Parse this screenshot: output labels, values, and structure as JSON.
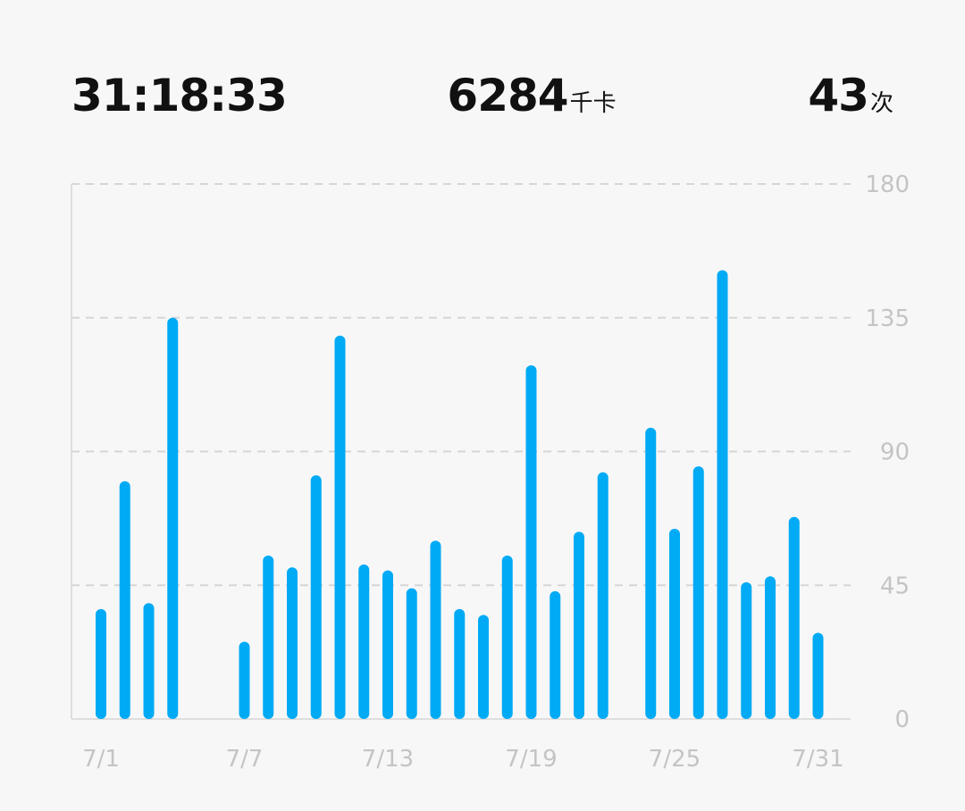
{
  "stats": {
    "duration": {
      "value": "31:18:33"
    },
    "calories": {
      "value": "6284",
      "unit": "千卡"
    },
    "count": {
      "value": "43",
      "unit": "次"
    }
  },
  "colors": {
    "bar": "#00aaf5",
    "grid": "#d6d6d6",
    "axis": "#dedede",
    "tick_text": "#c4c4c4",
    "text": "#111111",
    "background": "#f7f7f7"
  },
  "chart_data": {
    "type": "bar",
    "x": [
      "7/1",
      "7/2",
      "7/3",
      "7/4",
      "7/5",
      "7/6",
      "7/7",
      "7/8",
      "7/9",
      "7/10",
      "7/11",
      "7/12",
      "7/13",
      "7/14",
      "7/15",
      "7/16",
      "7/17",
      "7/18",
      "7/19",
      "7/20",
      "7/21",
      "7/22",
      "7/23",
      "7/24",
      "7/25",
      "7/26",
      "7/27",
      "7/28",
      "7/29",
      "7/30",
      "7/31"
    ],
    "values": [
      37,
      80,
      39,
      135,
      0,
      0,
      26,
      55,
      51,
      82,
      129,
      52,
      50,
      44,
      60,
      37,
      35,
      55,
      119,
      43,
      63,
      83,
      0,
      98,
      64,
      85,
      151,
      46,
      48,
      68,
      29
    ],
    "x_tick_labels": [
      "7/1",
      "7/7",
      "7/13",
      "7/19",
      "7/25",
      "7/31"
    ],
    "y_ticks": [
      0,
      45,
      90,
      135,
      180
    ],
    "ylim": [
      0,
      180
    ],
    "y_axis_side": "right",
    "grid": true,
    "title": "",
    "xlabel": "",
    "ylabel": ""
  }
}
